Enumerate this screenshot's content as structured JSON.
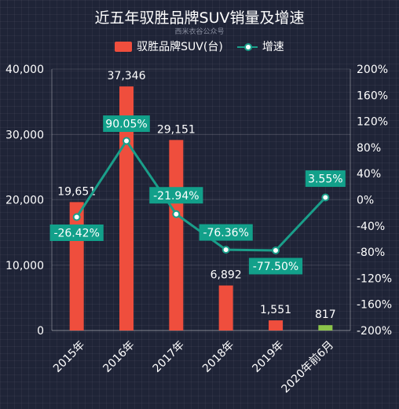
{
  "title": "近五年驭胜品牌SUV销量及增速",
  "subtitle": "西米衣谷公众号",
  "colors": {
    "background": "#1f2437",
    "bar": "#ef4e3d",
    "bar_highlight": "#8bc34a",
    "line": "#1a9f8a",
    "label_box": "#12a08a",
    "text": "#ffffff"
  },
  "chart_data": {
    "type": "bar",
    "categories": [
      "2015年",
      "2016年",
      "2017年",
      "2018年",
      "2019年",
      "2020年前6月"
    ],
    "series": [
      {
        "name": "驭胜品牌SUV(台)",
        "type": "bar",
        "axis": "left",
        "values": [
          19651,
          37346,
          29151,
          6892,
          1551,
          817
        ],
        "labels": [
          "19,651",
          "37,346",
          "29,151",
          "6,892",
          "1,551",
          "817"
        ]
      },
      {
        "name": "增速",
        "type": "line",
        "axis": "right",
        "values": [
          -26.42,
          90.05,
          -21.94,
          -76.36,
          -77.5,
          3.55
        ],
        "labels": [
          "-26.42%",
          "90.05%",
          "-21.94%",
          "-76.36%",
          "-77.50%",
          "3.55%"
        ]
      }
    ],
    "y_left": {
      "ylim": [
        0,
        40000
      ],
      "ticks": [
        "0",
        "10,000",
        "20,000",
        "30,000",
        "40,000"
      ]
    },
    "y_right": {
      "ylim": [
        -200,
        200
      ],
      "ticks": [
        "-200%",
        "-160%",
        "-120%",
        "-80%",
        "-40%",
        "0%",
        "40%",
        "80%",
        "120%",
        "160%",
        "200%"
      ]
    },
    "legend_position": "top"
  }
}
